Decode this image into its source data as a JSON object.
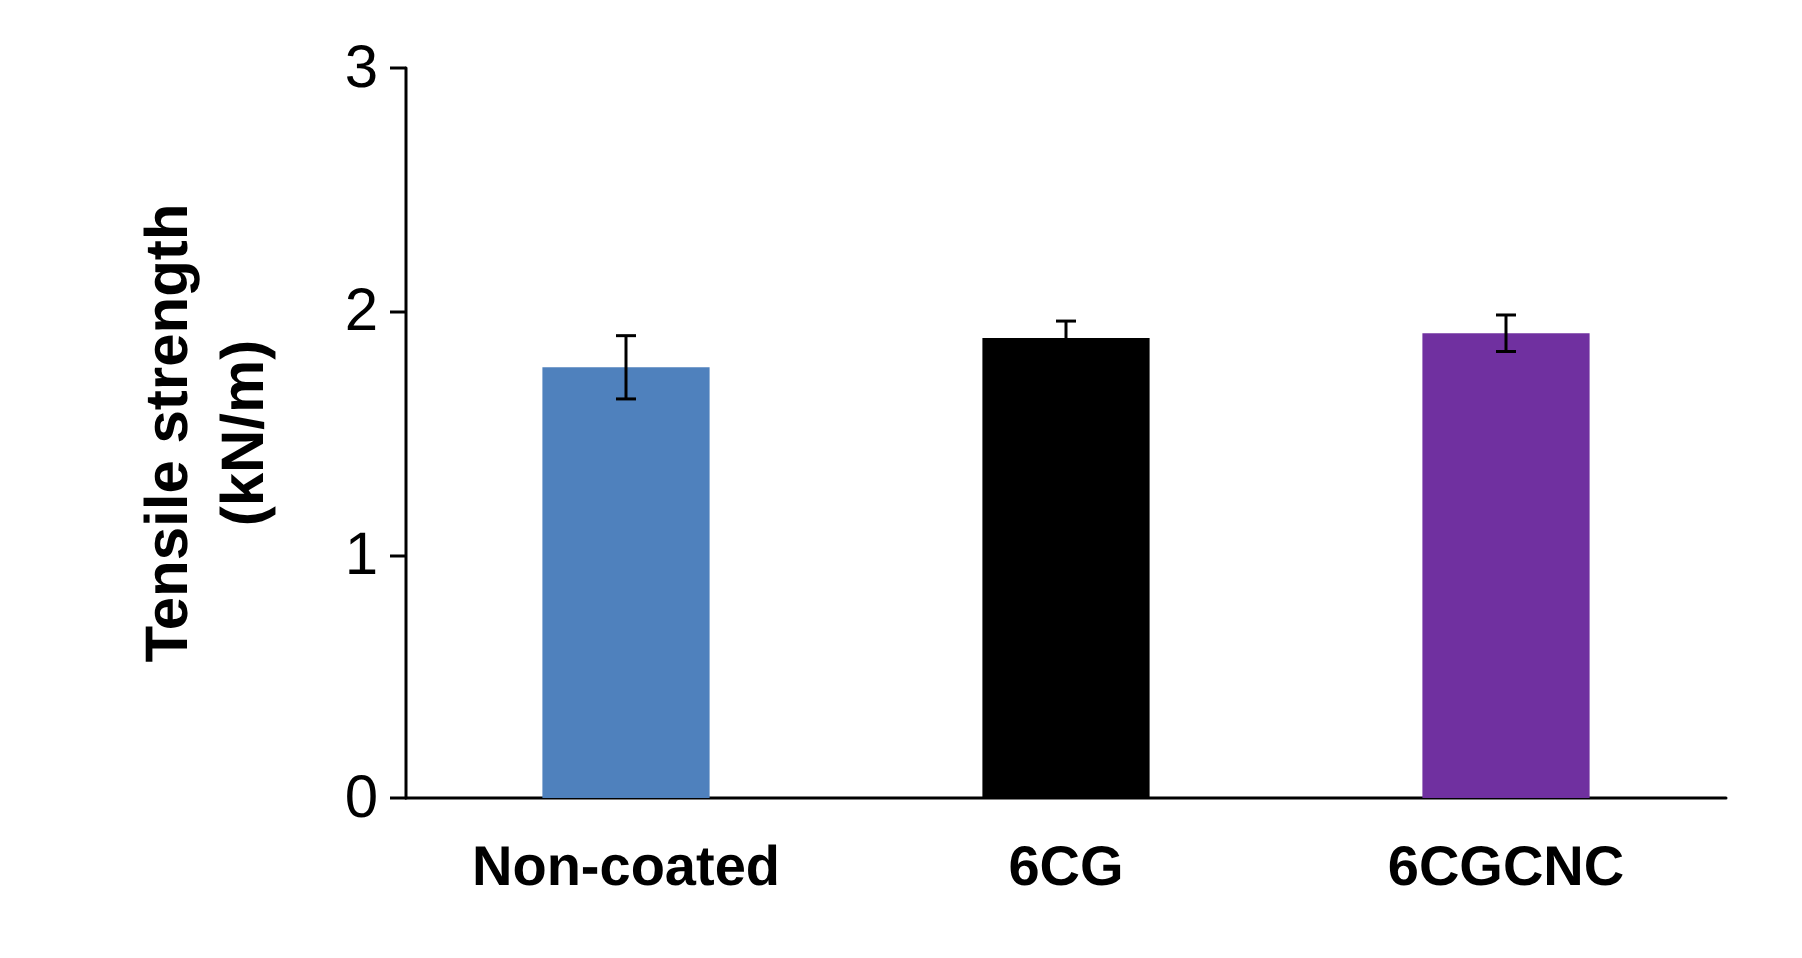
{
  "chart_data": {
    "type": "bar",
    "ylabel": "Tensile strength\n(kN/m)",
    "categories": [
      "Non-coated",
      "6CG",
      "6CGCNC"
    ],
    "values": [
      1.77,
      1.89,
      1.91
    ],
    "colors": [
      "#4f81bd",
      "#000000",
      "#7030a0"
    ],
    "errors": [
      0.13,
      0.07,
      0.075
    ],
    "ylim": [
      0,
      3
    ],
    "yticks": [
      0,
      1,
      2,
      3
    ],
    "grid": false
  }
}
